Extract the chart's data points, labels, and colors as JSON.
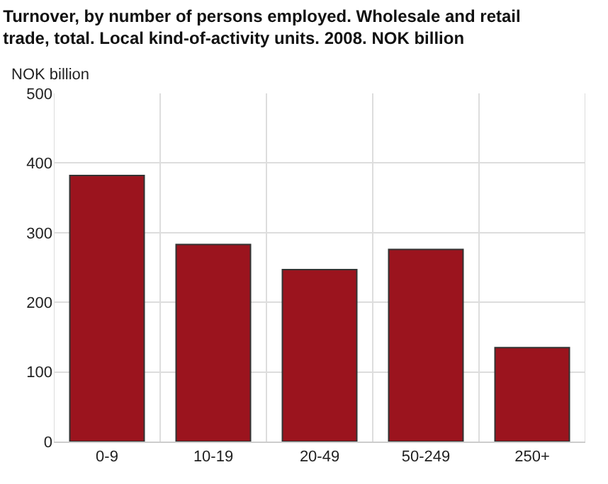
{
  "chart_data": {
    "type": "bar",
    "title": "Turnover, by number of persons employed. Wholesale and retail trade, total. Local kind-of-activity units. 2008. NOK billion",
    "ylabel": "NOK billion",
    "categories": [
      "0-9",
      "10-19",
      "20-49",
      "50-249",
      "250+"
    ],
    "values": [
      382,
      283,
      247,
      276,
      135
    ],
    "color": "#9b141e",
    "ylim": [
      0,
      500
    ],
    "yticks": [
      0,
      100,
      200,
      300,
      400,
      500
    ],
    "grid": true,
    "legend": false
  }
}
